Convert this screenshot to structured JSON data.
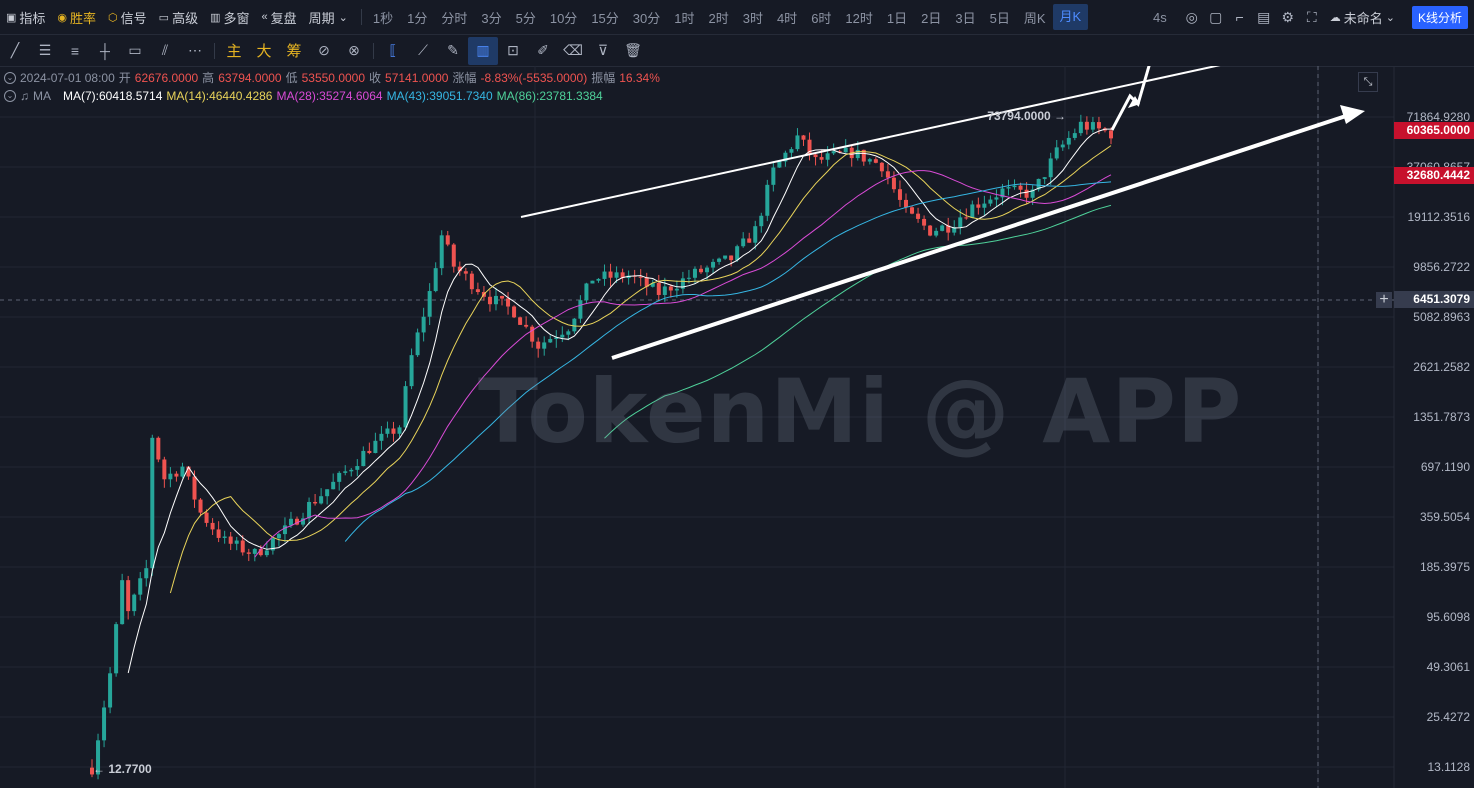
{
  "toolbar": {
    "indicators": "指标",
    "winrate": "胜率",
    "signal": "信号",
    "advanced": "高级",
    "multiwindow": "多窗",
    "replay": "复盘",
    "period": "周期",
    "periods": [
      "1秒",
      "1分",
      "分时",
      "3分",
      "5分",
      "10分",
      "15分",
      "30分",
      "1时",
      "2时",
      "3时",
      "4时",
      "6时",
      "12时",
      "1日",
      "2日",
      "3日",
      "5日",
      "周K",
      "月K"
    ],
    "active_period": "月K",
    "refresh": "4s",
    "unnamed": "未命名",
    "kline_analysis": "K线分析"
  },
  "drawing_tools": {
    "main": "主",
    "big": "大",
    "chips": "筹"
  },
  "ohlc": {
    "date": "2024-07-01 08:00",
    "open_label": "开",
    "open": "62676.0000",
    "high_label": "高",
    "high": "63794.0000",
    "low_label": "低",
    "low": "53550.0000",
    "close_label": "收",
    "close": "57141.0000",
    "change_label": "涨幅",
    "change": "-8.83%(-5535.0000)",
    "amp_label": "振幅",
    "amp": "16.34%"
  },
  "ma": {
    "label": "MA",
    "ma7": "MA(7):60418.5714",
    "ma14": "MA(14):46440.4286",
    "ma28": "MA(28):35274.6064",
    "ma43": "MA(43):39051.7340",
    "ma86": "MA(86):23781.3384",
    "colors": {
      "ma7": "#ffffff",
      "ma14": "#e8d35a",
      "ma28": "#d94bd6",
      "ma43": "#36b6e3",
      "ma86": "#4fd19a"
    }
  },
  "watermark": "TokenMi @ APP",
  "price_tags": {
    "last_price": "60365.0000",
    "ma_tag": "32680.4442",
    "crosshair": "6451.3079"
  },
  "chart_data": {
    "type": "candlestick",
    "yscale": "log",
    "y_ticks": [
      "71864.9280",
      "37060.8657",
      "19112.3516",
      "9856.2722",
      "5082.8963",
      "2621.2582",
      "1351.7873",
      "697.1190",
      "359.5054",
      "185.3975",
      "95.6098",
      "49.3061",
      "25.4272",
      "13.1128"
    ],
    "y_tick_values": [
      71864.928,
      37060.8657,
      19112.3516,
      9856.2722,
      5082.8963,
      2621.2582,
      1351.7873,
      697.119,
      359.5054,
      185.3975,
      95.6098,
      49.3061,
      25.4272,
      13.1128
    ],
    "max_label": "73794.0000",
    "min_label": "12.7700",
    "max_value": 73794,
    "min_value": 12.77,
    "colors": {
      "up": "#26a69a",
      "down": "#ef5350",
      "background": "#161a25",
      "grid": "#212634"
    }
  }
}
